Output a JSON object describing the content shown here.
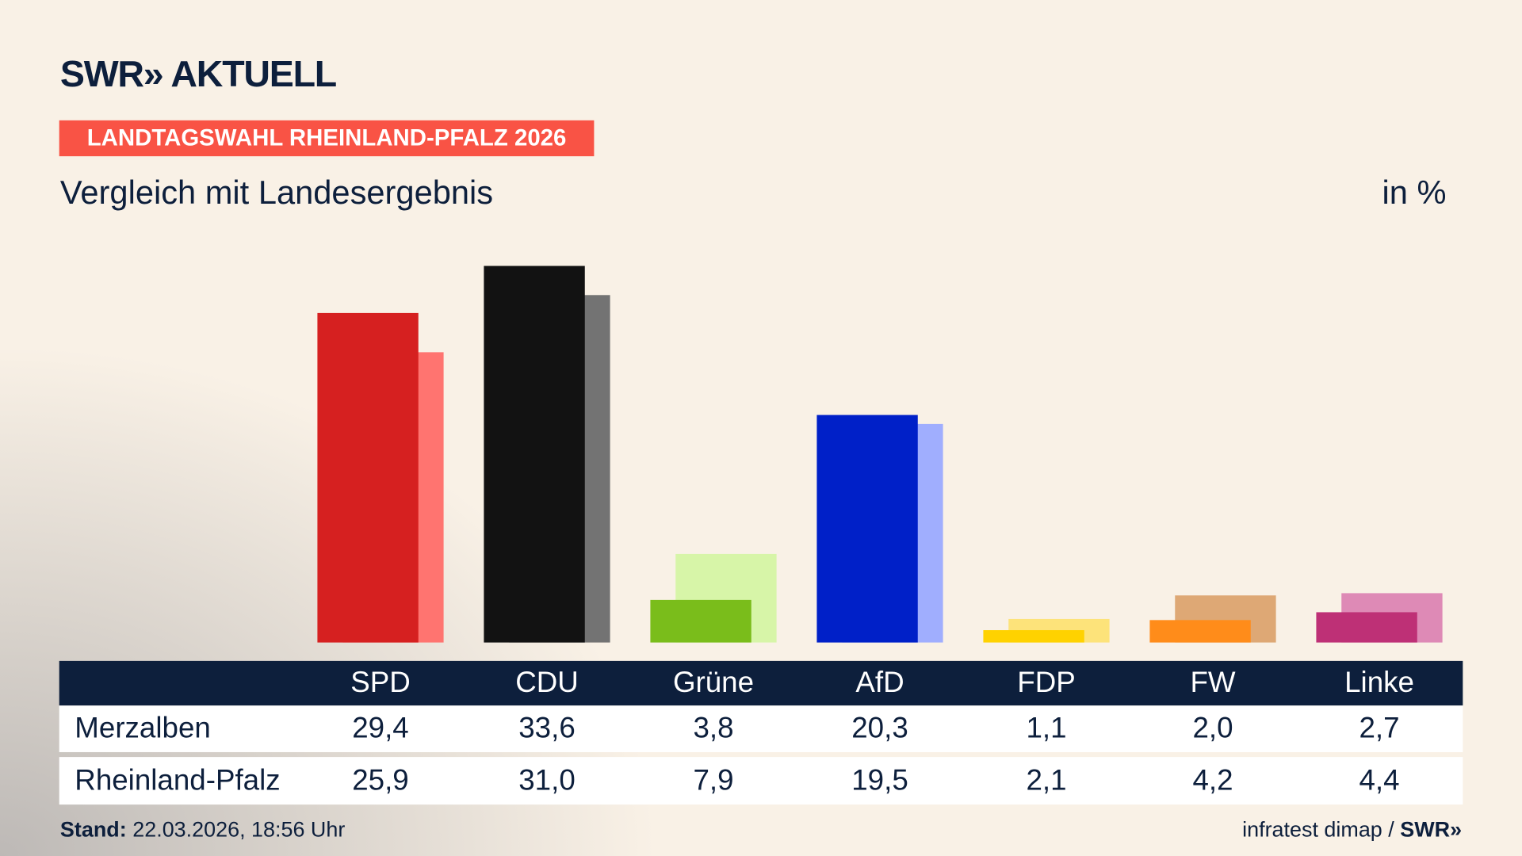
{
  "header": {
    "logo": "SWR» AKTUELL",
    "badge": "LANDTAGSWAHL RHEINLAND-PFALZ 2026",
    "subtitle": "Vergleich mit Landesergebnis",
    "unit": "in %"
  },
  "chart_data": {
    "type": "bar",
    "categories": [
      "SPD",
      "CDU",
      "Grüne",
      "AfD",
      "FDP",
      "FW",
      "Linke"
    ],
    "series": [
      {
        "name": "Merzalben",
        "values": [
          29.4,
          33.6,
          3.8,
          20.3,
          1.1,
          2.0,
          2.7
        ],
        "labels": [
          "29,4",
          "33,6",
          "3,8",
          "20,3",
          "1,1",
          "2,0",
          "2,7"
        ]
      },
      {
        "name": "Rheinland-Pfalz",
        "values": [
          25.9,
          31.0,
          7.9,
          19.5,
          2.1,
          4.2,
          4.4
        ],
        "labels": [
          "25,9",
          "31,0",
          "7,9",
          "19,5",
          "2,1",
          "4,2",
          "4,4"
        ]
      }
    ],
    "colors": {
      "primary": [
        "#d62020",
        "#121212",
        "#7abd1b",
        "#0020c8",
        "#ffd200",
        "#ff8c1a",
        "#be3076"
      ],
      "secondary": [
        "#ff7470",
        "#737373",
        "#d7f5a8",
        "#a0aefe",
        "#fde37a",
        "#dea875",
        "#de8ab6"
      ]
    },
    "ylim": [
      0,
      35
    ],
    "grid": false,
    "legend": "table-below"
  },
  "footer": {
    "stand_label": "Stand:",
    "stand_value": "22.03.2026, 18:56 Uhr",
    "source": "infratest dimap / ",
    "source_logo": "SWR»"
  }
}
